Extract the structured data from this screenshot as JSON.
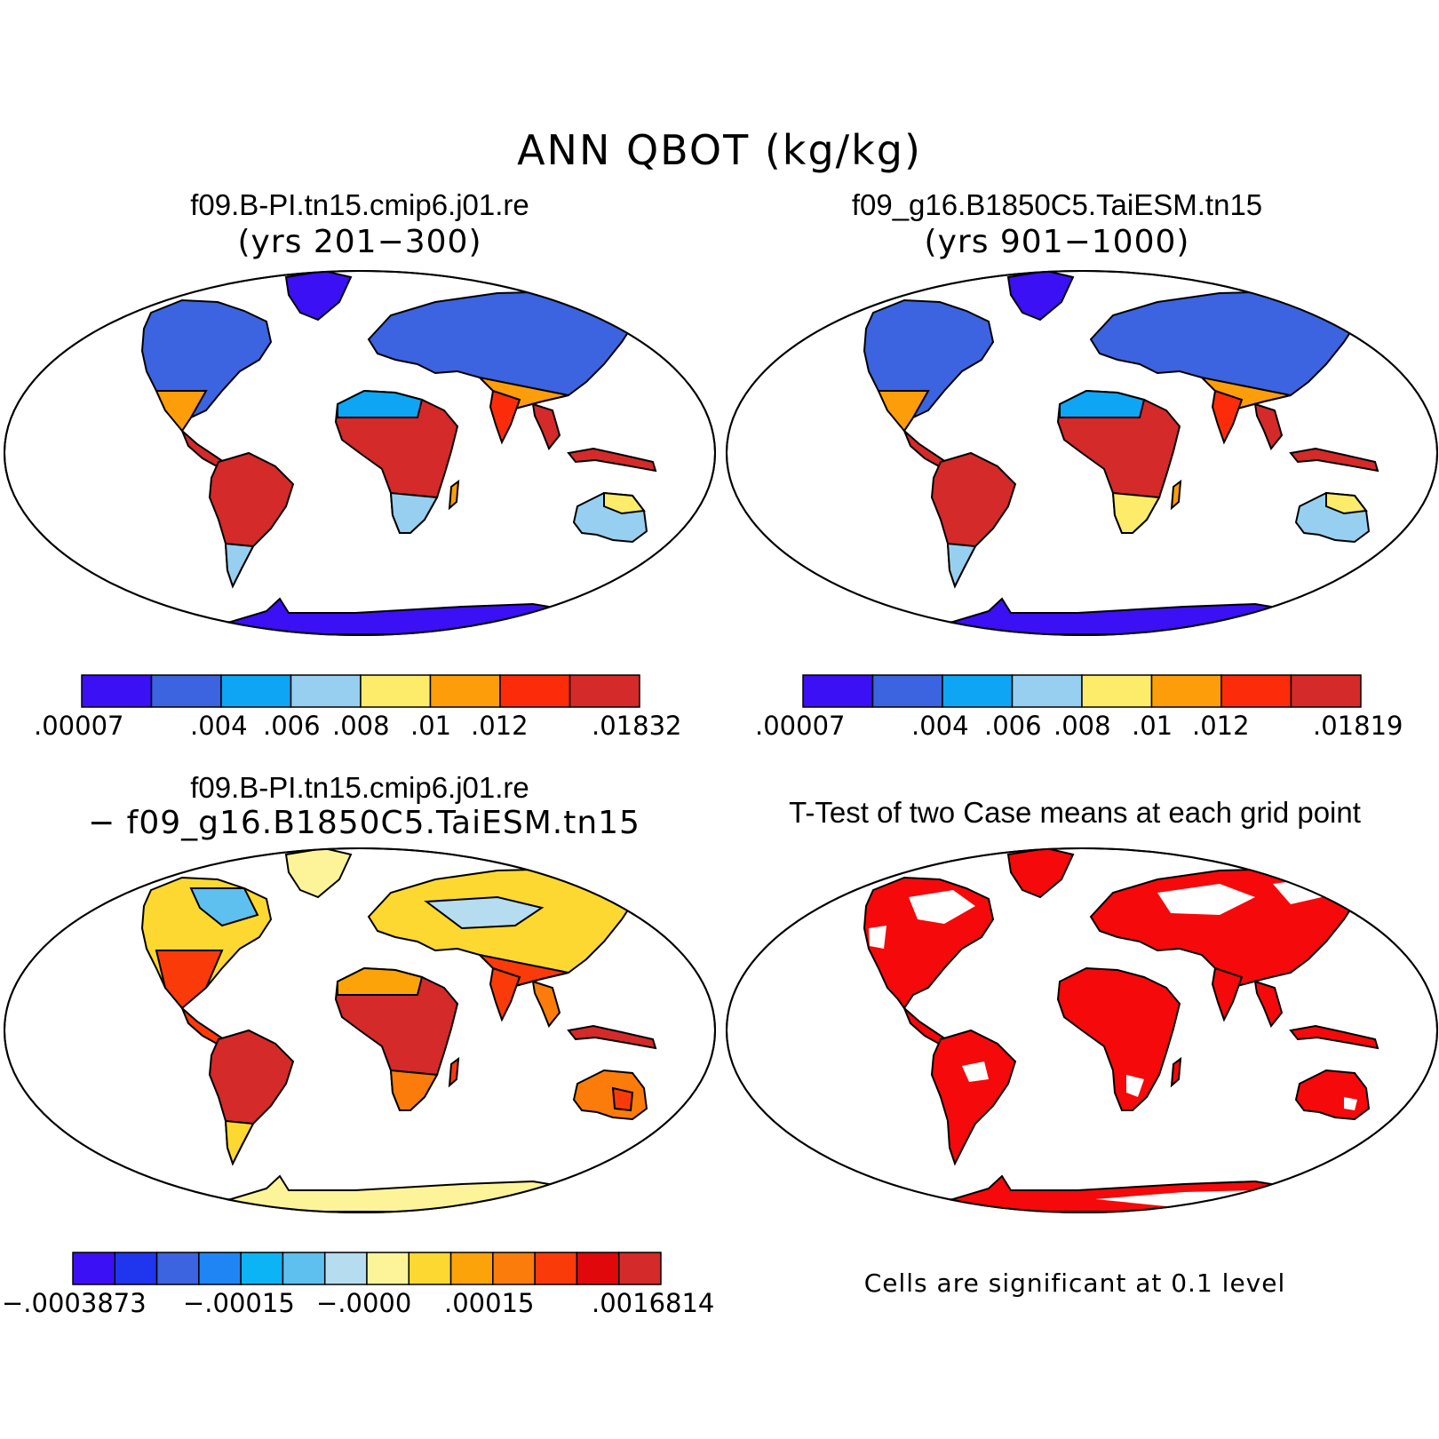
{
  "title": "ANN QBOT (kg/kg)",
  "panels": {
    "top_left": {
      "case": "f09.B-PI.tn15.cmip6.j01.re",
      "years": "(yrs 201−300)"
    },
    "top_right": {
      "case": "f09_g16.B1850C5.TaiESM.tn15",
      "years": "(yrs 901−1000)"
    },
    "bottom_left": {
      "line1": "f09.B-PI.tn15.cmip6.j01.re",
      "line2": "−  f09_g16.B1850C5.TaiESM.tn15"
    },
    "bottom_right": {
      "title": "T-Test of two Case means at each grid point",
      "note": "Cells are significant at 0.1 level"
    }
  },
  "colorbars": {
    "case1": {
      "colors": [
        "#3b10f5",
        "#3c63e0",
        "#0ea5f5",
        "#97cff0",
        "#fdec6a",
        "#fd9d0a",
        "#fc2c0a",
        "#d42a2a"
      ],
      "labels": [
        ".00007",
        ".004",
        ".006",
        ".008",
        ".01",
        ".012",
        ".01832"
      ]
    },
    "case2": {
      "colors": [
        "#3b10f5",
        "#3c63e0",
        "#0ea5f5",
        "#97cff0",
        "#fdec6a",
        "#fd9d0a",
        "#fc2c0a",
        "#d42a2a"
      ],
      "labels": [
        ".00007",
        ".004",
        ".006",
        ".008",
        ".01",
        ".012",
        ".01819"
      ]
    },
    "diff": {
      "colors": [
        "#3b10f5",
        "#1f35ee",
        "#3c63e0",
        "#1f85f5",
        "#0cb4f5",
        "#5ec0ee",
        "#b6dcf0",
        "#fdf49a",
        "#fdd830",
        "#fda30a",
        "#fb7c0a",
        "#fb3a0a",
        "#e0080a",
        "#d42a2a"
      ],
      "labels": [
        "−.0003873",
        "−.00015",
        "−.0000",
        ".00015",
        ".0016814"
      ]
    }
  },
  "ttest_color": "#f5090a"
}
